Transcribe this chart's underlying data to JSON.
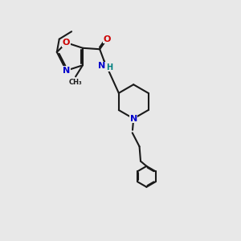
{
  "bg_color": "#e8e8e8",
  "bond_color": "#1a1a1a",
  "bond_width": 1.5,
  "atom_colors": {
    "N": "#0000cc",
    "O": "#cc0000",
    "H": "#008080",
    "C": "#1a1a1a"
  },
  "font_size_atom": 8,
  "xlim": [
    0,
    10
  ],
  "ylim": [
    0,
    10
  ]
}
